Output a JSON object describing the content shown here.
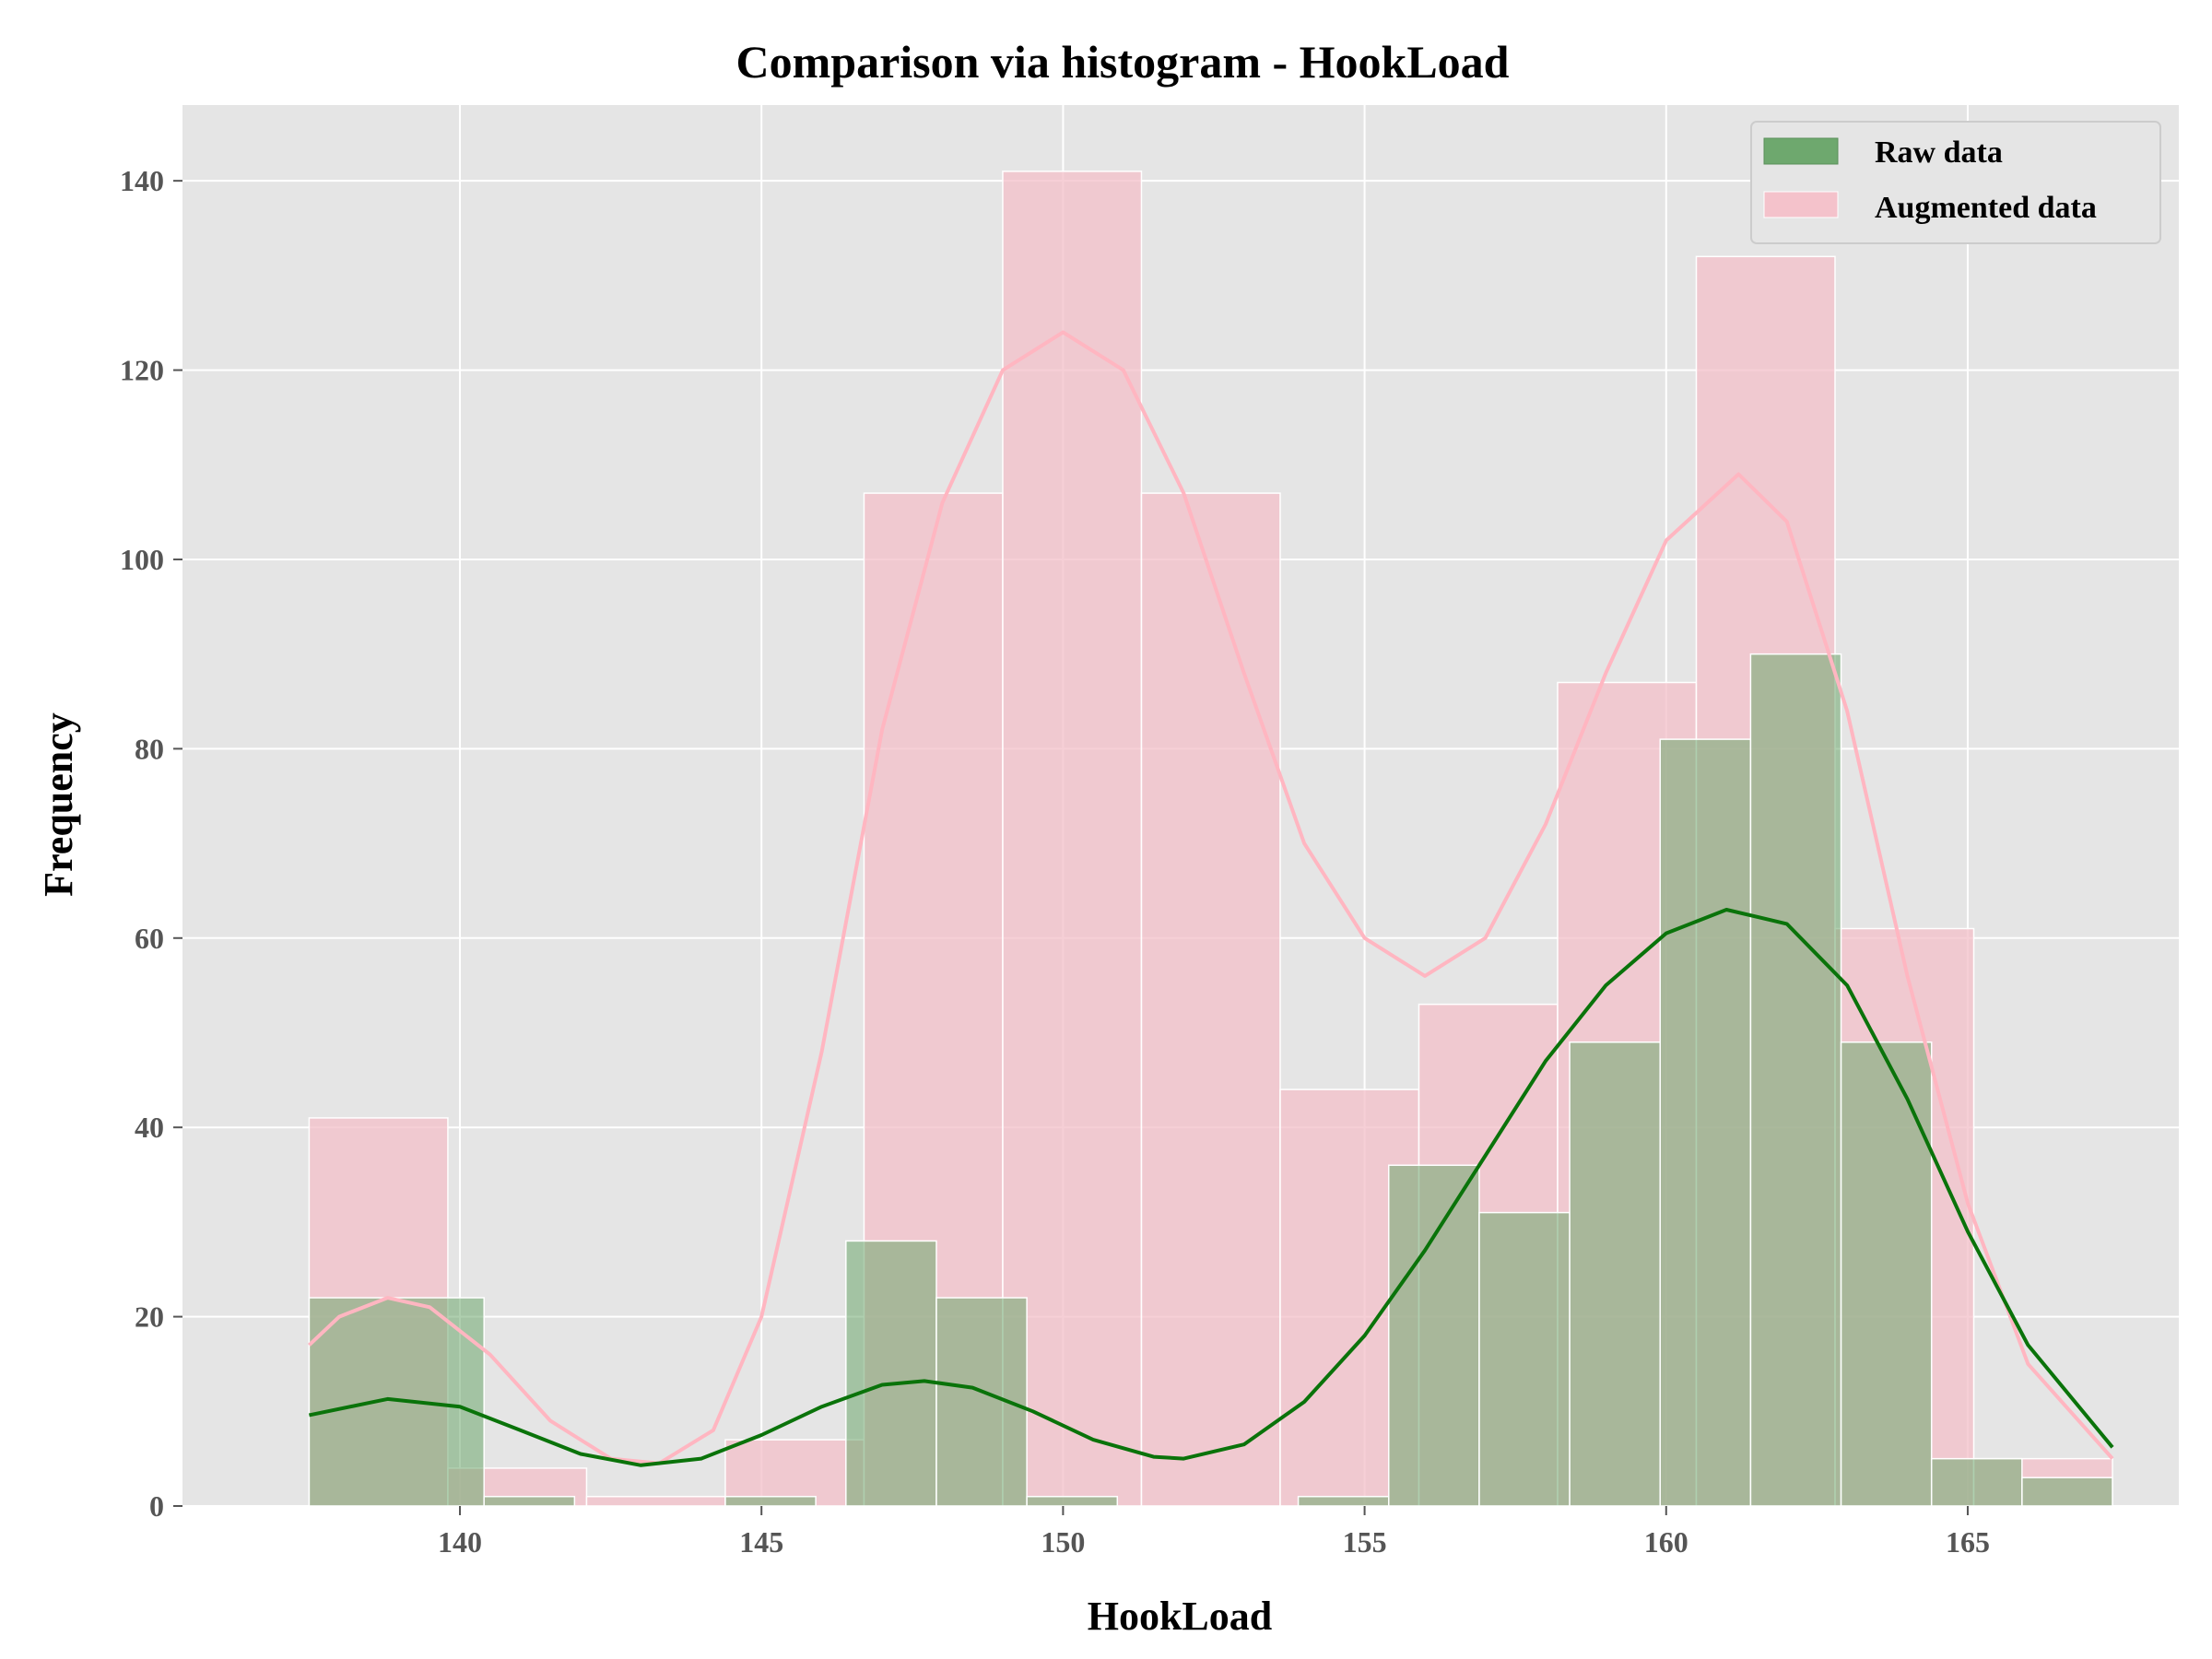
{
  "chart_data": {
    "type": "bar",
    "title": "Comparison via histogram - HookLoad",
    "xlabel": "HookLoad",
    "ylabel": "Frequency",
    "xlim": [
      135.4,
      168.5
    ],
    "ylim": [
      0,
      148
    ],
    "xticks": [
      140,
      145,
      150,
      155,
      160,
      165
    ],
    "yticks": [
      0,
      20,
      40,
      60,
      80,
      100,
      120,
      140
    ],
    "grid": true,
    "legend_position": "top-right",
    "series": [
      {
        "name": "Augmented data",
        "color": "#f4c2cb",
        "kde_color": "#ffb6c1",
        "bins": [
          {
            "x0": 137.5,
            "x1": 139.8,
            "count": 41
          },
          {
            "x0": 139.8,
            "x1": 142.1,
            "count": 4
          },
          {
            "x0": 142.1,
            "x1": 144.4,
            "count": 1
          },
          {
            "x0": 144.4,
            "x1": 146.7,
            "count": 7
          },
          {
            "x0": 146.7,
            "x1": 149.0,
            "count": 107
          },
          {
            "x0": 149.0,
            "x1": 151.3,
            "count": 141
          },
          {
            "x0": 151.3,
            "x1": 153.6,
            "count": 107
          },
          {
            "x0": 153.6,
            "x1": 155.9,
            "count": 44
          },
          {
            "x0": 155.9,
            "x1": 158.2,
            "count": 53
          },
          {
            "x0": 158.2,
            "x1": 160.5,
            "count": 87
          },
          {
            "x0": 160.5,
            "x1": 162.8,
            "count": 132
          },
          {
            "x0": 162.8,
            "x1": 165.1,
            "count": 61
          },
          {
            "x0": 165.1,
            "x1": 167.4,
            "count": 5
          }
        ],
        "kde": [
          [
            137.5,
            17
          ],
          [
            138.0,
            20
          ],
          [
            138.8,
            22
          ],
          [
            139.5,
            21
          ],
          [
            140.5,
            16
          ],
          [
            141.5,
            9
          ],
          [
            142.5,
            5
          ],
          [
            143.3,
            4.5
          ],
          [
            144.2,
            8
          ],
          [
            145.0,
            20
          ],
          [
            146.0,
            48
          ],
          [
            147.0,
            82
          ],
          [
            148.0,
            106
          ],
          [
            149.0,
            120
          ],
          [
            150.0,
            124
          ],
          [
            151.0,
            120
          ],
          [
            152.0,
            107
          ],
          [
            153.0,
            88
          ],
          [
            154.0,
            70
          ],
          [
            155.0,
            60
          ],
          [
            156.0,
            56
          ],
          [
            157.0,
            60
          ],
          [
            158.0,
            72
          ],
          [
            159.0,
            88
          ],
          [
            160.0,
            102
          ],
          [
            161.2,
            109
          ],
          [
            162.0,
            104
          ],
          [
            163.0,
            84
          ],
          [
            164.0,
            56
          ],
          [
            165.0,
            32
          ],
          [
            166.0,
            15
          ],
          [
            167.4,
            5
          ]
        ]
      },
      {
        "name": "Raw data",
        "color": "#6ea86e",
        "kde_color": "#0a730a",
        "bins": [
          {
            "x0": 137.5,
            "x1": 140.4,
            "count": 22
          },
          {
            "x0": 140.4,
            "x1": 141.9,
            "count": 1
          },
          {
            "x0": 144.4,
            "x1": 145.9,
            "count": 1
          },
          {
            "x0": 146.4,
            "x1": 147.9,
            "count": 28
          },
          {
            "x0": 147.9,
            "x1": 149.4,
            "count": 22
          },
          {
            "x0": 149.4,
            "x1": 150.9,
            "count": 1
          },
          {
            "x0": 153.9,
            "x1": 155.4,
            "count": 1
          },
          {
            "x0": 155.4,
            "x1": 156.9,
            "count": 36
          },
          {
            "x0": 156.9,
            "x1": 158.4,
            "count": 31
          },
          {
            "x0": 158.4,
            "x1": 159.9,
            "count": 49
          },
          {
            "x0": 159.9,
            "x1": 161.4,
            "count": 81
          },
          {
            "x0": 161.4,
            "x1": 162.9,
            "count": 90
          },
          {
            "x0": 162.9,
            "x1": 164.4,
            "count": 49
          },
          {
            "x0": 164.4,
            "x1": 165.9,
            "count": 5
          },
          {
            "x0": 165.9,
            "x1": 167.4,
            "count": 3
          }
        ],
        "kde": [
          [
            137.5,
            9.6
          ],
          [
            138.8,
            11.3
          ],
          [
            140.0,
            10.5
          ],
          [
            141.0,
            8
          ],
          [
            142.0,
            5.5
          ],
          [
            143.0,
            4.3
          ],
          [
            144.0,
            5
          ],
          [
            145.0,
            7.5
          ],
          [
            146.0,
            10.5
          ],
          [
            147.0,
            12.8
          ],
          [
            147.7,
            13.2
          ],
          [
            148.5,
            12.5
          ],
          [
            149.5,
            10
          ],
          [
            150.5,
            7
          ],
          [
            151.5,
            5.2
          ],
          [
            152.0,
            5
          ],
          [
            153.0,
            6.5
          ],
          [
            154.0,
            11
          ],
          [
            155.0,
            18
          ],
          [
            156.0,
            27
          ],
          [
            157.0,
            37
          ],
          [
            158.0,
            47
          ],
          [
            159.0,
            55
          ],
          [
            160.0,
            60.5
          ],
          [
            161.0,
            63
          ],
          [
            162.0,
            61.5
          ],
          [
            163.0,
            55
          ],
          [
            164.0,
            43
          ],
          [
            165.0,
            29
          ],
          [
            166.0,
            17
          ],
          [
            167.4,
            6.2
          ]
        ]
      }
    ],
    "legend": [
      "Raw data",
      "Augmented data"
    ]
  }
}
